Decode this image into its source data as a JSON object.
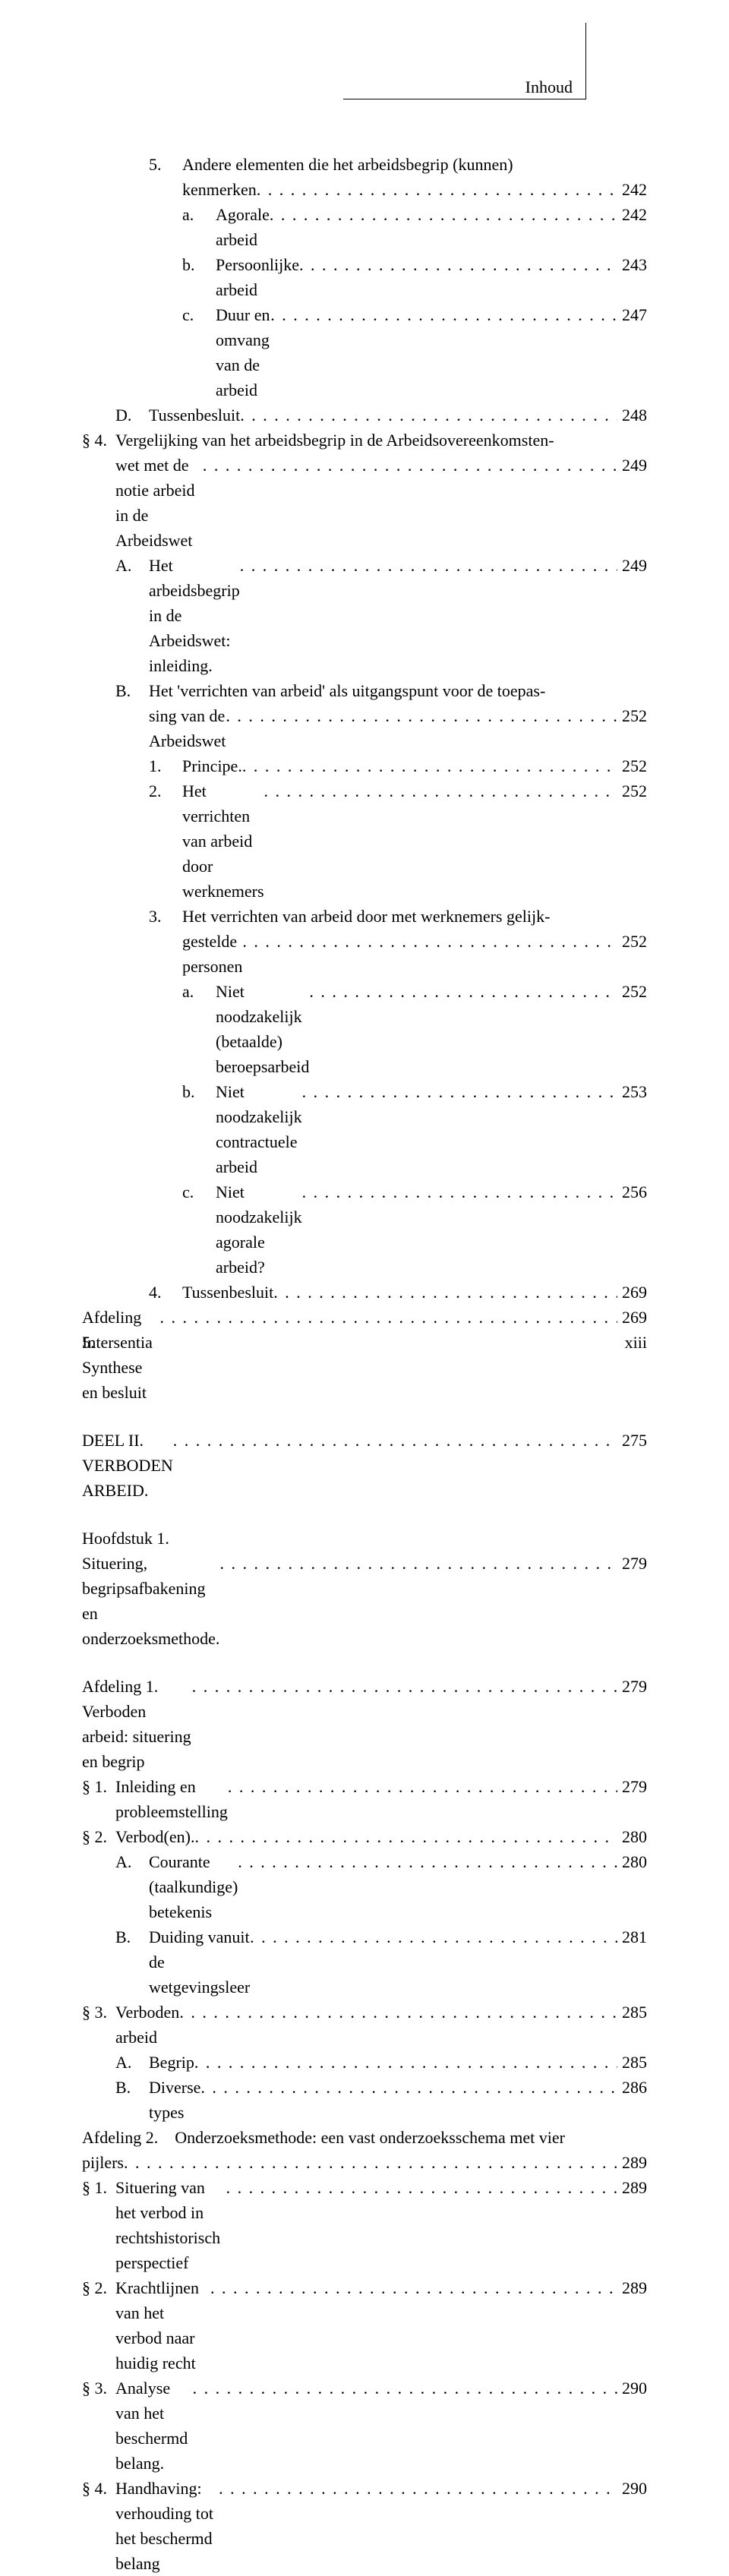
{
  "running_head": "Inhoud",
  "entries": [
    {
      "indent": 2,
      "marker": "5.",
      "text": "Andere elementen die het arbeidsbegrip (kunnen)",
      "wrap": "kenmerken",
      "page": "242"
    },
    {
      "indent": 3,
      "marker": "a.",
      "text": "Agorale arbeid",
      "page": "242"
    },
    {
      "indent": 3,
      "marker": "b.",
      "text": "Persoonlijke arbeid",
      "page": "243"
    },
    {
      "indent": 3,
      "marker": "c.",
      "text": "Duur en omvang van de arbeid",
      "page": "247"
    },
    {
      "indent": 1,
      "marker": "D.",
      "text": "Tussenbesluit",
      "page": "248"
    },
    {
      "indent": 0,
      "marker": "§ 4.",
      "text": "Vergelijking van het arbeidsbegrip in de Arbeidsovereenkomsten-",
      "wrap": "wet met de notie arbeid in de Arbeidswet",
      "page": "249"
    },
    {
      "indent": 1,
      "marker": "A.",
      "text": "Het arbeidsbegrip in de Arbeidswet: inleiding.",
      "page": "249"
    },
    {
      "indent": 1,
      "marker": "B.",
      "text": "Het 'verrichten van arbeid' als uitgangspunt voor de toepas-",
      "wrap": "sing van de Arbeidswet",
      "page": "252"
    },
    {
      "indent": 2,
      "marker": "1.",
      "text": "Principe.",
      "page": "252"
    },
    {
      "indent": 2,
      "marker": "2.",
      "text": "Het verrichten van arbeid door werknemers",
      "page": "252"
    },
    {
      "indent": 2,
      "marker": "3.",
      "text": "Het verrichten van arbeid door met werknemers gelijk-",
      "wrap": "gestelde personen",
      "page": "252"
    },
    {
      "indent": 3,
      "marker": "a.",
      "text": "Niet noodzakelijk (betaalde) beroepsarbeid",
      "page": "252"
    },
    {
      "indent": 3,
      "marker": "b.",
      "text": "Niet noodzakelijk contractuele arbeid",
      "page": "253"
    },
    {
      "indent": 3,
      "marker": "c.",
      "text": "Niet noodzakelijk agorale arbeid?",
      "page": "256"
    },
    {
      "indent": 2,
      "marker": "4.",
      "text": "Tussenbesluit",
      "page": "269"
    },
    {
      "indent": 0,
      "marker": "",
      "text": "Afdeling 5. Synthese en besluit",
      "page": "269",
      "nomarker": true
    }
  ],
  "part2": {
    "indent": 0,
    "marker": "",
    "text": "DEEL II. VERBODEN ARBEID.",
    "page": "275",
    "nomarker": true
  },
  "chapter1_lines": [
    "Hoofdstuk 1."
  ],
  "chapter1_entry": {
    "indent": 0,
    "marker": "",
    "text": "Situering, begripsafbakening en onderzoeksmethode.",
    "page": "279",
    "nomarker": true
  },
  "entries2": [
    {
      "indent": 0,
      "marker": "",
      "text": "Afdeling 1. Verboden arbeid: situering en begrip",
      "page": "279",
      "nomarker": true
    },
    {
      "indent": 0,
      "marker": "§ 1.",
      "text": "Inleiding en probleemstelling",
      "page": "279"
    },
    {
      "indent": 0,
      "marker": "§ 2.",
      "text": "Verbod(en).",
      "page": "280"
    },
    {
      "indent": 1,
      "marker": "A.",
      "text": "Courante (taalkundige) betekenis",
      "page": "280"
    },
    {
      "indent": 1,
      "marker": "B.",
      "text": "Duiding vanuit de wetgevingsleer",
      "page": "281"
    },
    {
      "indent": 0,
      "marker": "§ 3.",
      "text": "Verboden arbeid",
      "page": "285"
    },
    {
      "indent": 1,
      "marker": "A.",
      "text": "Begrip",
      "page": "285"
    },
    {
      "indent": 1,
      "marker": "B.",
      "text": "Diverse types",
      "page": "286"
    },
    {
      "indent": 0,
      "marker": "",
      "text": "Afdeling 2. Onderzoeksmethode: een vast onderzoeksschema met vier",
      "wrap": "pijlers",
      "page": "289",
      "nomarker": true,
      "wrapIndent": 0
    },
    {
      "indent": 0,
      "marker": "§ 1.",
      "text": "Situering van het verbod in rechtshistorisch perspectief",
      "page": "289"
    },
    {
      "indent": 0,
      "marker": "§ 2.",
      "text": "Krachtlijnen van het verbod naar huidig recht",
      "page": "289"
    },
    {
      "indent": 0,
      "marker": "§ 3.",
      "text": "Analyse van het beschermd belang.",
      "page": "290"
    },
    {
      "indent": 0,
      "marker": "§ 4.",
      "text": "Handhaving: verhouding tot het beschermd belang",
      "page": "290"
    }
  ],
  "footer": {
    "publisher": "Intersentia",
    "page": "xiii"
  }
}
